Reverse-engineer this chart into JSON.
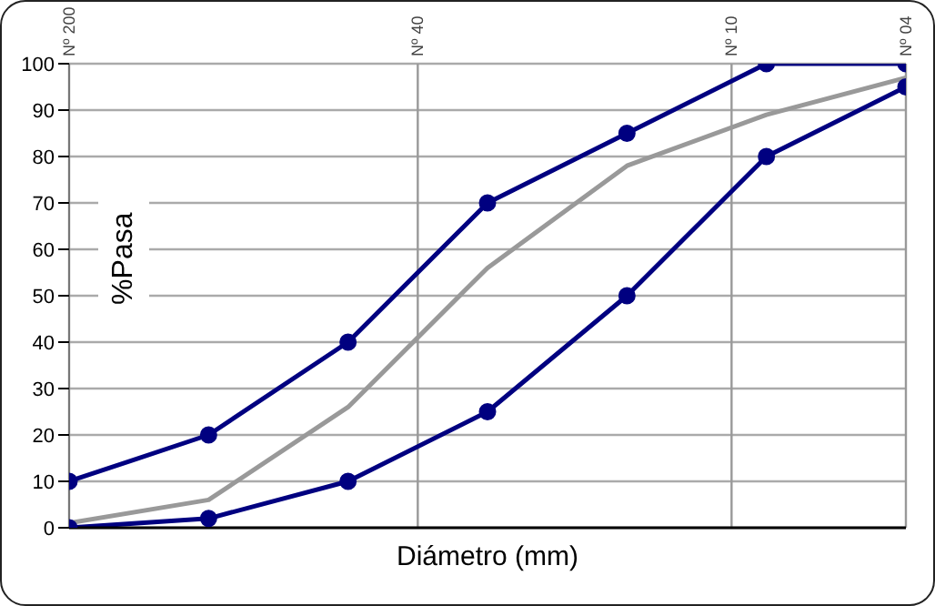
{
  "chart_data": {
    "type": "line",
    "xlabel": "Diámetro (mm)",
    "ylabel": "%Pasa",
    "categories": [
      "Nº 200",
      null,
      null,
      null,
      null,
      null,
      null,
      null,
      null,
      null,
      "Nº 40",
      null,
      null,
      null,
      null,
      null,
      null,
      null,
      null,
      "Nº 10",
      null,
      null,
      null,
      null,
      "Nº 04"
    ],
    "ylim": [
      0,
      100
    ],
    "yticks": [
      0,
      10,
      20,
      30,
      40,
      50,
      60,
      70,
      80,
      90,
      100
    ],
    "grid": true,
    "legend": false,
    "marker": "circle",
    "series": [
      {
        "color": "#000080",
        "values": [
          10,
          null,
          null,
          null,
          20,
          null,
          null,
          null,
          40,
          null,
          null,
          null,
          70,
          null,
          null,
          null,
          85,
          null,
          null,
          null,
          100,
          null,
          null,
          null,
          100
        ]
      },
      {
        "color": "#999999",
        "marker": "none",
        "values": [
          1,
          null,
          null,
          null,
          6,
          null,
          null,
          null,
          26,
          null,
          null,
          null,
          56,
          null,
          null,
          null,
          78,
          null,
          null,
          null,
          89,
          null,
          null,
          null,
          97
        ]
      },
      {
        "color": "#000080",
        "values": [
          0,
          null,
          null,
          null,
          2,
          null,
          null,
          null,
          10,
          null,
          null,
          null,
          25,
          null,
          null,
          null,
          50,
          null,
          null,
          null,
          80,
          null,
          null,
          null,
          95
        ]
      }
    ]
  }
}
